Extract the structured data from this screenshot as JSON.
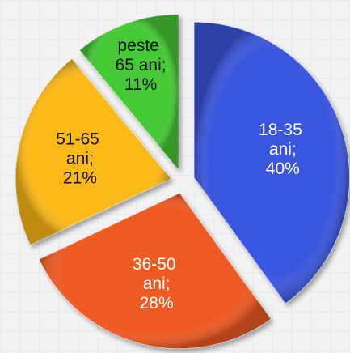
{
  "chart_data": {
    "type": "pie",
    "categories": [
      "18-35 ani;",
      "36-50 ani;",
      "51-65 ani;",
      "peste 65 ani;"
    ],
    "values": [
      40,
      28,
      21,
      11
    ],
    "value_labels": [
      "40%",
      "28%",
      "21%",
      "11%"
    ],
    "colors": [
      "#3a56de",
      "#ee5a24",
      "#fdb913",
      "#45c935"
    ],
    "label_colors": [
      "#ffffff",
      "#ffffff",
      "#111111",
      "#111111"
    ]
  }
}
